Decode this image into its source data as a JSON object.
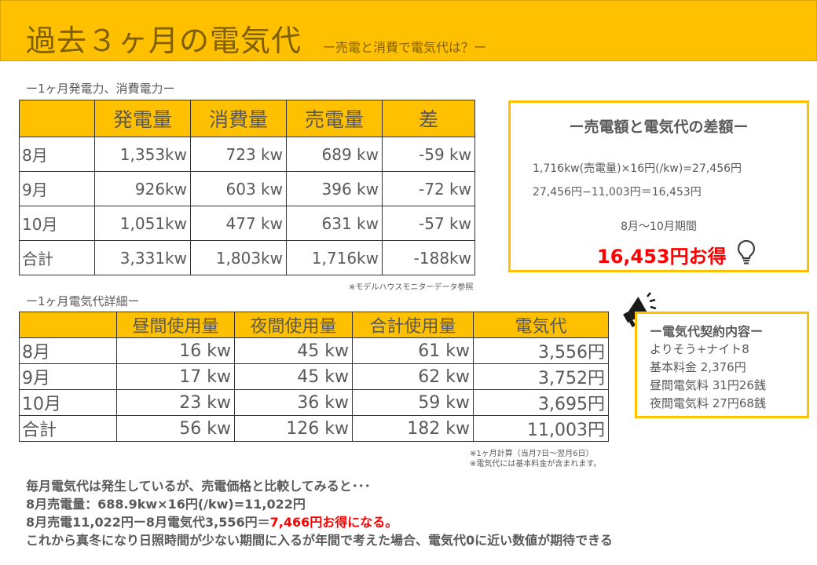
{
  "header": {
    "title": "過去３ヶ月の電気代",
    "subtitle": "ー売電と消費で電気代は？ー",
    "accent_color": "#ffc000"
  },
  "generation": {
    "label": "ー1ヶ月発電力、消費電力ー",
    "columns": [
      "",
      "発電量",
      "消費量",
      "売電量",
      "差"
    ],
    "rows": [
      [
        "8月",
        "1,353kw",
        "723 kw",
        "689 kw",
        "-59 kw"
      ],
      [
        "9月",
        "926kw",
        "603 kw",
        "396 kw",
        "-72 kw"
      ],
      [
        "10月",
        "1,051kw",
        "477 kw",
        "631 kw",
        "-57 kw"
      ],
      [
        "合計",
        "3,331kw",
        "1,803kw",
        "1,716kw",
        "-188kw"
      ]
    ],
    "note": "※モデルハウスモニターデータ参照"
  },
  "billing": {
    "label": "ー1ヶ月電気代詳細ー",
    "columns": [
      "",
      "昼間使用量",
      "夜間使用量",
      "合計使用量",
      "電気代"
    ],
    "rows": [
      [
        "8月",
        "16 kw",
        "45 kw",
        "61 kw",
        "3,556円"
      ],
      [
        "9月",
        "17 kw",
        "45 kw",
        "62 kw",
        "3,752円"
      ],
      [
        "10月",
        "23 kw",
        "36 kw",
        "59 kw",
        "3,695円"
      ],
      [
        "合計",
        "56 kw",
        "126 kw",
        "182 kw",
        "11,003円"
      ]
    ],
    "note_1": "※1ヶ月計算（当月7日～翌月6日）",
    "note_2": "※電気代には基本料金が含まれます。"
  },
  "difference_box": {
    "title": "ー売電額と電気代の差額ー",
    "line_1": "1,716kw(売電量)×16円(/kw)=27,456円",
    "line_2": "27,456円−11,003円＝16,453円",
    "period": "8月～10月期間",
    "amount": "16,453円お得",
    "icon": "lightbulb-icon"
  },
  "contract_box": {
    "title": "ー電気代契約内容ー",
    "lines": [
      "よりそう+ナイト8",
      "基本料金 2,376円",
      "昼間電気料 31円26銭",
      "夜間電気料 27円68銭"
    ],
    "icon": "megaphone-icon"
  },
  "summary": {
    "line_1": "毎月電気代は発生しているが、売電価格と比較してみると･･･",
    "line_2": "8月売電量：688.9kw×16円(/kw)=11,022円",
    "line_3_prefix": "8月売電11,022円ー8月電気代3,556円＝",
    "line_3_highlight": "7,466円お得になる。",
    "line_4": "これから真冬になり日照時間が少ない期間に入るが年間で考えた場合、電気代0に近い数値が期待できる"
  }
}
